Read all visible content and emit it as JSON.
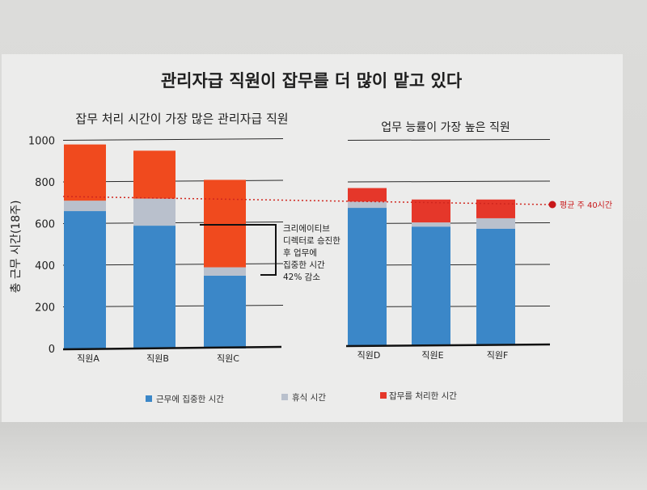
{
  "figure": {
    "title": "관리자급 직원이 잡무를 더 많이 맡고 있다",
    "ylabel": "총 근무 시간(18주)",
    "avg_label": "평균 주 40시간",
    "annotation_lines": [
      "크리에이티브",
      "디렉터로 승진한",
      "후 업무에",
      "집중한 시간",
      "42% 감소"
    ]
  },
  "legend": [
    {
      "label": "근무에 집중한 시간",
      "color": "#3b87c8"
    },
    {
      "label": "휴식 시간",
      "color": "#b9c0cc"
    },
    {
      "label": "잡무를 처리한 시간",
      "color": "#e5372a"
    }
  ],
  "chart_data": [
    {
      "type": "bar",
      "stacked": true,
      "title": "잡무 처리 시간이 가장 많은 관리자급 직원",
      "categories": [
        "직원A",
        "직원B",
        "직원C"
      ],
      "series": [
        {
          "name": "근무에 집중한 시간",
          "values": [
            660,
            590,
            350
          ],
          "color": "#3b87c8"
        },
        {
          "name": "휴식 시간",
          "values": [
            50,
            130,
            40
          ],
          "color": "#b9c0cc"
        },
        {
          "name": "잡무를 처리한 시간",
          "values": [
            270,
            230,
            420
          ],
          "color": "#f04a1e"
        }
      ],
      "yticks": [
        0,
        200,
        400,
        600,
        800,
        1000
      ],
      "ylim": [
        0,
        1000
      ],
      "reference_line": 720
    },
    {
      "type": "bar",
      "stacked": true,
      "title": "업무 능률이 가장 높은 직원",
      "categories": [
        "직원D",
        "직원E",
        "직원F"
      ],
      "series": [
        {
          "name": "근무에 집중한 시간",
          "values": [
            660,
            570,
            560
          ],
          "color": "#3b87c8"
        },
        {
          "name": "휴식 시간",
          "values": [
            30,
            20,
            50
          ],
          "color": "#b9c0cc"
        },
        {
          "name": "잡무를 처리한 시간",
          "values": [
            65,
            110,
            90
          ],
          "color": "#e5372a"
        }
      ],
      "ylim": [
        0,
        1000
      ],
      "reference_line": 720
    }
  ]
}
